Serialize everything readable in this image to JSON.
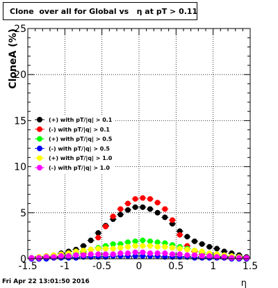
{
  "title": "Clone  over all for Global vs   η at pT > 0.11",
  "footer_timestamp": "Fri Apr 22 13:01:50 2016",
  "chart_data": {
    "type": "scatter",
    "title": "Clone  over all for Global vs   η at pT > 0.11",
    "xlabel": "η",
    "ylabel": "CloneA (%)",
    "xlim": [
      -1.5,
      1.5
    ],
    "ylim": [
      0,
      25
    ],
    "xticks": [
      "-1.5",
      "-1",
      "-0.5",
      "0",
      "0.5",
      "1",
      "1.5"
    ],
    "yticks": [
      "0",
      "5",
      "10",
      "15",
      "20",
      "25"
    ],
    "grid": true,
    "legend_position": "left-middle",
    "x": [
      -1.45,
      -1.35,
      -1.25,
      -1.15,
      -1.05,
      -0.95,
      -0.85,
      -0.75,
      -0.65,
      -0.55,
      -0.45,
      -0.35,
      -0.25,
      -0.15,
      -0.05,
      0.05,
      0.15,
      0.25,
      0.35,
      0.45,
      0.55,
      0.65,
      0.75,
      0.85,
      0.95,
      1.05,
      1.15,
      1.25,
      1.35,
      1.45
    ],
    "series": [
      {
        "name": "(+) with pT/|q| > 0.1",
        "color": "#000000",
        "values": [
          0.1,
          0.2,
          0.3,
          0.4,
          0.6,
          0.8,
          1.0,
          1.4,
          2.0,
          2.8,
          3.6,
          4.3,
          4.8,
          5.3,
          5.6,
          5.6,
          5.4,
          5.0,
          4.5,
          3.8,
          3.0,
          2.4,
          1.9,
          1.6,
          1.3,
          1.1,
          0.8,
          0.6,
          0.4,
          0.2
        ]
      },
      {
        "name": "(-) with pT/|q| > 0.1",
        "color": "#ff0000",
        "values": [
          0,
          0,
          0.1,
          0.1,
          0.2,
          0.3,
          0.4,
          0.6,
          1.0,
          2.3,
          3.5,
          4.6,
          5.4,
          6.0,
          6.5,
          6.6,
          6.5,
          6.1,
          5.4,
          4.2,
          2.6,
          1.4,
          0.8,
          0.5,
          0.3,
          0.2,
          0.1,
          0.1,
          0,
          0
        ]
      },
      {
        "name": "(+) with pT/|q| > 0.5",
        "color": "#00ff00",
        "values": [
          0.1,
          0.1,
          0.2,
          0.2,
          0.3,
          0.4,
          0.6,
          0.8,
          1.0,
          1.2,
          1.4,
          1.6,
          1.6,
          1.8,
          1.9,
          2.0,
          1.9,
          1.8,
          1.7,
          1.5,
          1.3,
          1.1,
          0.9,
          0.7,
          0.5,
          0.4,
          0.3,
          0.2,
          0.1,
          0.1
        ]
      },
      {
        "name": "(-) with pT/|q| > 0.5",
        "color": "#0000ff",
        "values": [
          0,
          0,
          0,
          0.1,
          0.1,
          0.1,
          0.1,
          0.2,
          0.2,
          0.2,
          0.2,
          0.3,
          0.3,
          0.3,
          0.3,
          0.3,
          0.3,
          0.3,
          0.2,
          0.2,
          0.2,
          0.2,
          0.1,
          0.1,
          0.1,
          0.1,
          0.1,
          0,
          0,
          0
        ]
      },
      {
        "name": "(+) with pT/|q| > 1.0",
        "color": "#ffff00",
        "values": [
          0.1,
          0.2,
          0.3,
          0.4,
          0.5,
          0.6,
          0.8,
          0.9,
          1.0,
          1.1,
          1.1,
          1.1,
          1.2,
          1.3,
          1.4,
          1.4,
          1.4,
          1.3,
          1.3,
          1.2,
          1.1,
          1.0,
          0.9,
          0.8,
          0.6,
          0.5,
          0.4,
          0.3,
          0.2,
          0.1
        ]
      },
      {
        "name": "(-) with pT/|q| > 1.0",
        "color": "#ff00ff",
        "values": [
          0.1,
          0.1,
          0.2,
          0.2,
          0.3,
          0.3,
          0.4,
          0.4,
          0.5,
          0.5,
          0.5,
          0.5,
          0.6,
          0.6,
          0.7,
          0.7,
          0.6,
          0.6,
          0.6,
          0.5,
          0.5,
          0.4,
          0.4,
          0.3,
          0.3,
          0.2,
          0.2,
          0.1,
          0.1,
          0.1
        ]
      }
    ]
  }
}
